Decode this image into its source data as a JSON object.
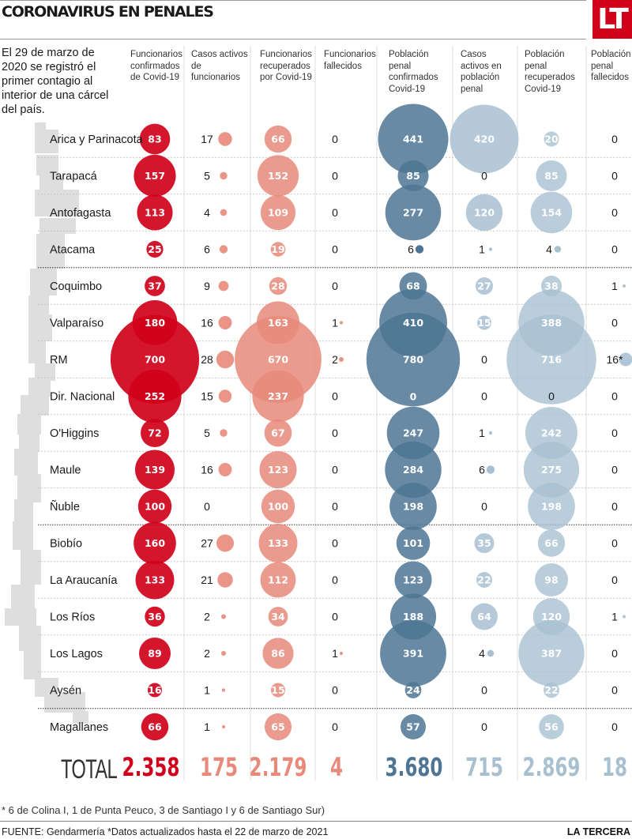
{
  "header": {
    "title": "CORONAVIRUS EN PENALES",
    "logo": "LT",
    "intro": "El 29 de marzo de 2020 se registró el primer contagio al interior de una cárcel del país."
  },
  "colors": {
    "funcionarios_confirmados": "#d0021b",
    "funcionarios_activos": "#e8897a",
    "funcionarios_recuperados": "#e8897a",
    "funcionarios_fallecidos": "#e8897a",
    "poblacion_confirmados": "#4e7694",
    "poblacion_activos": "#a9c0d1",
    "poblacion_recuperados": "#a9c0d1",
    "poblacion_fallecidos": "#a9c0d1",
    "map": "#dedede"
  },
  "chart_data": {
    "type": "bubble-table",
    "title": "CORONAVIRUS EN PENALES",
    "columns": [
      {
        "key": "func_conf",
        "label": "Funcionarios confirmados de Covid-19",
        "style": "bubble-labeled",
        "total": "2.358"
      },
      {
        "key": "func_act",
        "label": "Casos activos de funcionarios",
        "style": "dot",
        "total": "175"
      },
      {
        "key": "func_rec",
        "label": "Funcionarios recuperados por Covid-19",
        "style": "bubble-labeled",
        "total": "2.179"
      },
      {
        "key": "func_fall",
        "label": "Funcionarios fallecidos",
        "style": "dot",
        "total": "4"
      },
      {
        "key": "pob_conf",
        "label": "Población penal confirmados Covid-19",
        "style": "bubble-labeled",
        "total": "3.680"
      },
      {
        "key": "pob_act",
        "label": "Casos activos en población penal",
        "style": "bubble-labeled",
        "total": "715"
      },
      {
        "key": "pob_rec",
        "label": "Población penal recuperados Covid-19",
        "style": "bubble-labeled",
        "total": "2.869"
      },
      {
        "key": "pob_fall",
        "label": "Población penal fallecidos",
        "style": "dot",
        "total": "18"
      }
    ],
    "rows": [
      {
        "region": "Arica y Parinacota",
        "values": [
          83,
          17,
          66,
          0,
          441,
          420,
          20,
          0
        ]
      },
      {
        "region": "Tarapacá",
        "values": [
          157,
          5,
          152,
          0,
          85,
          0,
          85,
          0
        ]
      },
      {
        "region": "Antofagasta",
        "values": [
          113,
          4,
          109,
          0,
          277,
          120,
          154,
          0
        ]
      },
      {
        "region": "Atacama",
        "values": [
          25,
          6,
          19,
          0,
          6,
          1,
          4,
          0
        ]
      },
      {
        "region": "Coquimbo",
        "values": [
          37,
          9,
          28,
          0,
          68,
          27,
          38,
          1
        ]
      },
      {
        "region": "Valparaíso",
        "values": [
          180,
          16,
          163,
          1,
          410,
          15,
          388,
          0
        ]
      },
      {
        "region": "RM",
        "values": [
          700,
          28,
          670,
          2,
          780,
          0,
          716,
          16
        ],
        "footnote_marks": {
          "7": "*"
        }
      },
      {
        "region": "Dir. Nacional",
        "values": [
          252,
          15,
          237,
          0,
          0,
          0,
          0,
          0
        ]
      },
      {
        "region": "O'Higgins",
        "values": [
          72,
          5,
          67,
          0,
          247,
          1,
          242,
          0
        ]
      },
      {
        "region": "Maule",
        "values": [
          139,
          16,
          123,
          0,
          284,
          6,
          275,
          0
        ]
      },
      {
        "region": "Ñuble",
        "values": [
          100,
          0,
          100,
          0,
          198,
          0,
          198,
          0
        ]
      },
      {
        "region": "Biobío",
        "values": [
          160,
          27,
          133,
          0,
          101,
          35,
          66,
          0
        ]
      },
      {
        "region": "La Araucanía",
        "values": [
          133,
          21,
          112,
          0,
          123,
          22,
          98,
          0
        ]
      },
      {
        "region": "Los Ríos",
        "values": [
          36,
          2,
          34,
          0,
          188,
          64,
          120,
          1
        ]
      },
      {
        "region": "Los Lagos",
        "values": [
          89,
          2,
          86,
          1,
          391,
          4,
          387,
          0
        ]
      },
      {
        "region": "Aysén",
        "values": [
          16,
          1,
          15,
          0,
          24,
          0,
          22,
          0
        ]
      },
      {
        "region": "Magallanes",
        "values": [
          66,
          1,
          65,
          0,
          57,
          0,
          56,
          0
        ]
      }
    ],
    "total_label": "TOTAL",
    "dashed_separators_after_rows": [
      3,
      10,
      15
    ]
  },
  "footer": {
    "footnote": "* 6 de Colina I, 1 de Punta Peuco, 3 de  Santiago I y 6 de Santiago Sur)",
    "source": "FUENTE: Gendarmería *Datos actualizados hasta el 22 de marzo de 2021",
    "brand": "LA TERCERA"
  }
}
